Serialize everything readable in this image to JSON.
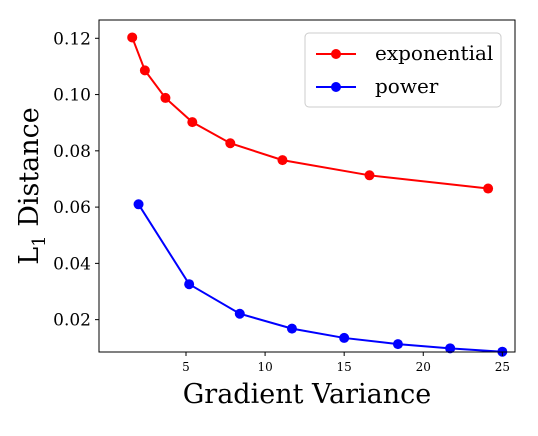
{
  "chart_data": {
    "type": "line",
    "title": "",
    "xlabel": "Gradient Variance",
    "ylabel_main": "L",
    "ylabel_sub": "1",
    "ylabel_rest": " Distance",
    "xlim": [
      -0.5,
      25.8
    ],
    "ylim": [
      0.0085,
      0.1265
    ],
    "x_ticks": [
      5,
      10,
      15,
      20,
      25
    ],
    "y_ticks": [
      0.02,
      0.04,
      0.06,
      0.08,
      0.1,
      0.12
    ],
    "y_tick_labels": [
      "0.02",
      "0.04",
      "0.06",
      "0.08",
      "0.10",
      "0.12"
    ],
    "grid": false,
    "legend": "top-right",
    "series": [
      {
        "name": "exponential",
        "color": "#ff0000",
        "x": [
          1.6,
          2.4,
          3.7,
          5.4,
          7.8,
          11.1,
          16.6,
          24.1
        ],
        "y": [
          0.1203,
          0.1086,
          0.0988,
          0.0902,
          0.0827,
          0.0767,
          0.0713,
          0.0666
        ]
      },
      {
        "name": "power",
        "color": "#0000ff",
        "x": [
          2.0,
          5.2,
          8.4,
          11.7,
          15.0,
          18.4,
          21.7,
          25.0
        ],
        "y": [
          0.061,
          0.0326,
          0.0221,
          0.0168,
          0.0135,
          0.0113,
          0.0098,
          0.0086
        ]
      }
    ]
  }
}
